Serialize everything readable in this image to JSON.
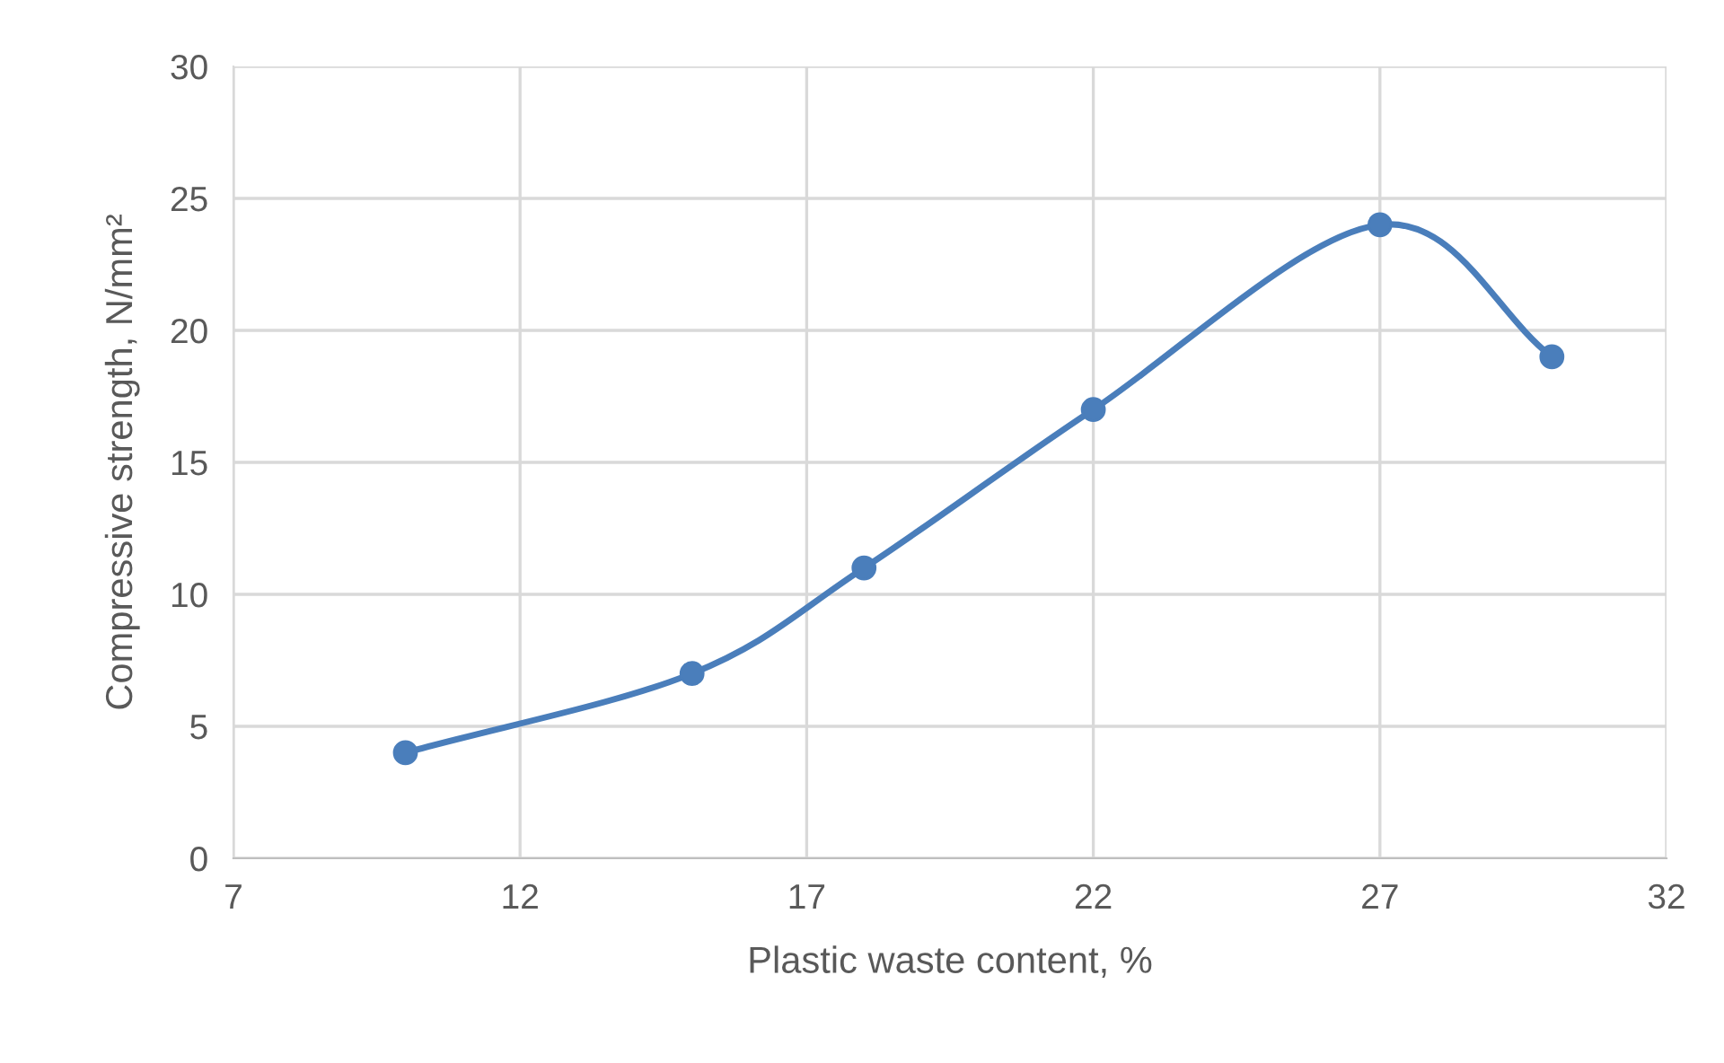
{
  "chart_data": {
    "type": "line",
    "xlabel": "Plastic waste content, %",
    "ylabel": "Compressive strength, N/mm²",
    "x": [
      10,
      15,
      18,
      22,
      27,
      30
    ],
    "series": [
      {
        "color": "#4a7ebb",
        "values": [
          4,
          7,
          11,
          17,
          24,
          19
        ]
      }
    ],
    "xlim": [
      7,
      32
    ],
    "xticks": [
      7,
      12,
      17,
      22,
      27,
      32
    ],
    "ylim": [
      0,
      30
    ],
    "yticks": [
      0,
      5,
      10,
      15,
      20,
      25,
      30
    ],
    "grid": true,
    "marker": "circle",
    "line_style": "solid",
    "legend": false
  }
}
